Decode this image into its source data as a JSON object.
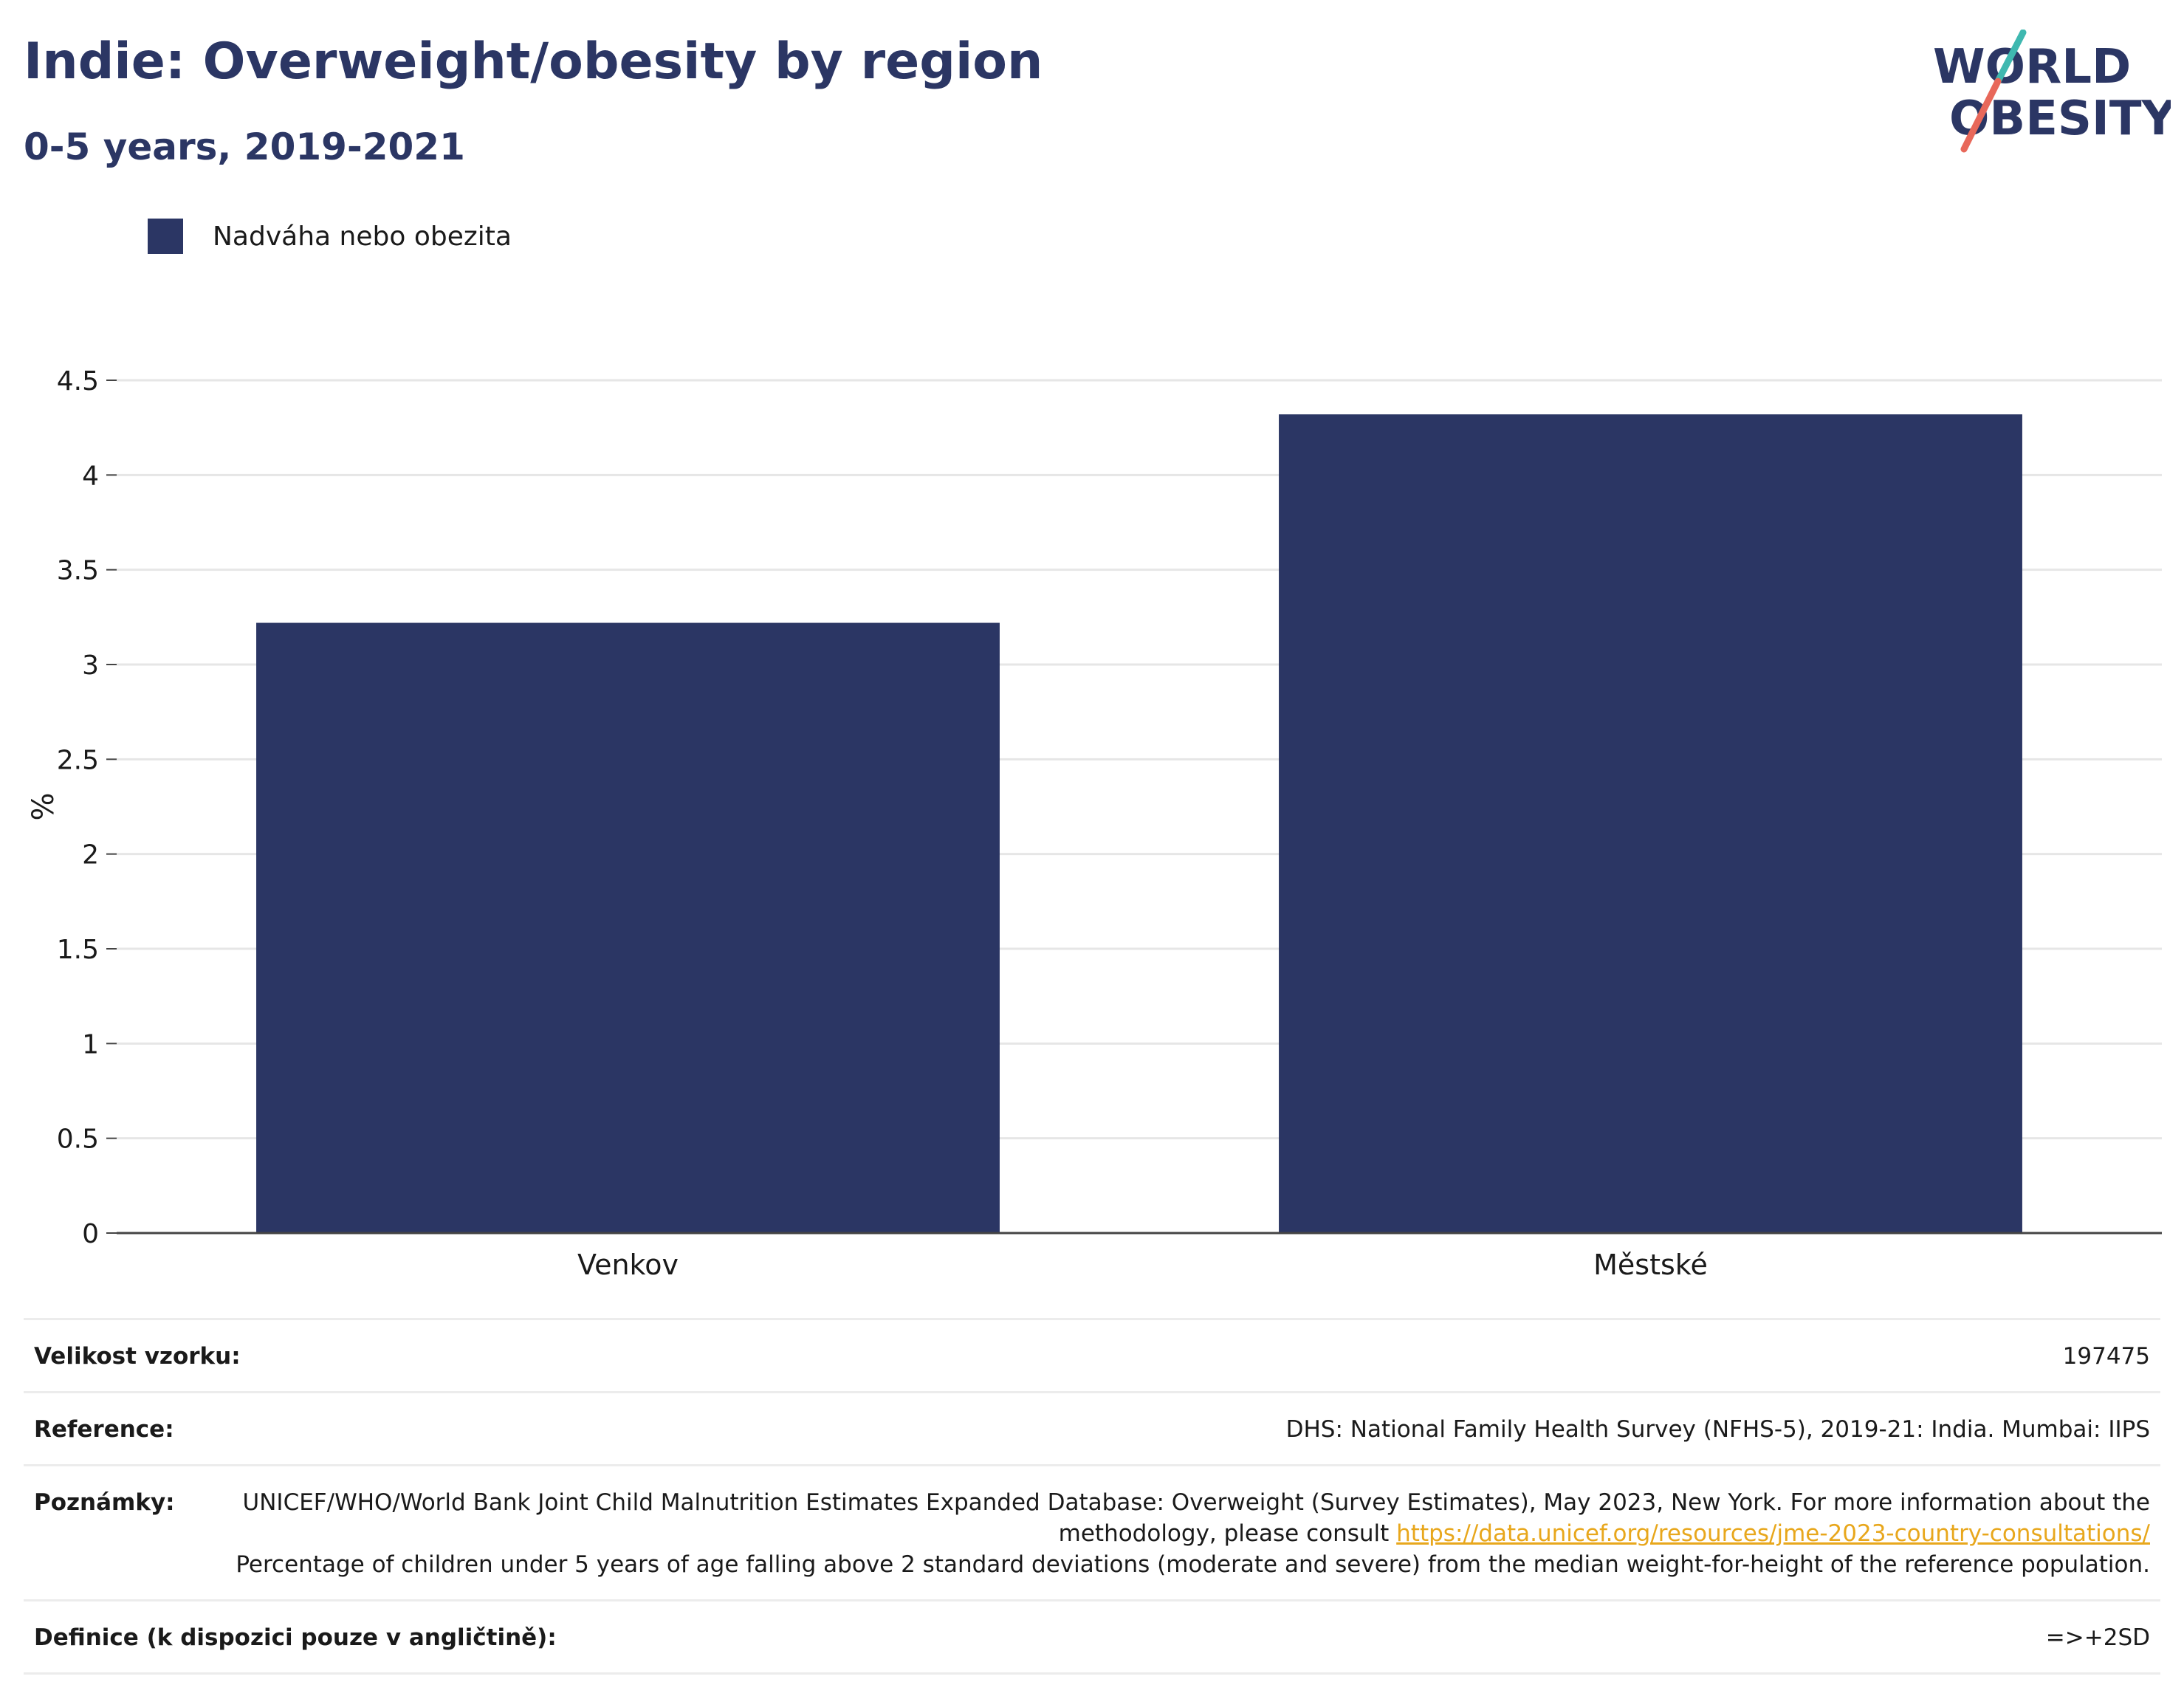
{
  "header": {
    "title": "Indie: Overweight/obesity by region",
    "subtitle": "0-5 years, 2019-2021"
  },
  "logo": {
    "line1": "WORLD",
    "line2": "OBESITY",
    "colors": {
      "text": "#2b3664",
      "stroke_top": "#3fb8b0",
      "stroke_bottom": "#e8685a"
    }
  },
  "legend": {
    "label": "Nadváha nebo obezita",
    "color": "#2b3664"
  },
  "chart_data": {
    "type": "bar",
    "categories": [
      "Venkov",
      "Městské"
    ],
    "series": [
      {
        "name": "Nadváha nebo obezita",
        "values": [
          3.22,
          4.32
        ],
        "color": "#2b3664"
      }
    ],
    "ylabel": "%",
    "ylim": [
      0,
      4.5
    ],
    "yticks": [
      0,
      0.5,
      1,
      1.5,
      2,
      2.5,
      3,
      3.5,
      4,
      4.5
    ],
    "ytick_labels": [
      "0",
      "0.5",
      "1",
      "1.5",
      "2",
      "2.5",
      "3",
      "3.5",
      "4",
      "4.5"
    ],
    "grid": true
  },
  "info": {
    "sample_label": "Velikost vzorku:",
    "sample_value": "197475",
    "reference_label": "Reference:",
    "reference_value": "DHS: National Family Health Survey (NFHS-5), 2019-21: India. Mumbai: IIPS",
    "notes_label": "Poznámky:",
    "notes_text1": "UNICEF/WHO/World Bank Joint Child Malnutrition Estimates Expanded Database: Overweight (Survey Estimates), May 2023, New York. For more information about the methodology, please consult",
    "notes_link": "https://data.unicef.org/resources/jme-2023-country-consultations/",
    "notes_text2": "Percentage of children under 5 years of age falling above 2 standard deviations (moderate and severe) from the median weight-for-height of the reference population.",
    "definition_label": "Definice (k dispozici pouze v angličtině):",
    "definition_value": "=>+2SD"
  }
}
